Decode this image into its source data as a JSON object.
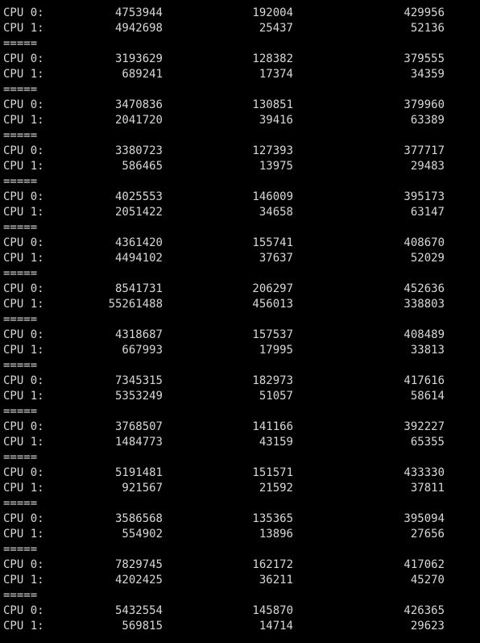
{
  "terminal": {
    "separator": "=====",
    "blocks": [
      {
        "cpu0": {
          "label": "CPU 0:",
          "a": "4753944",
          "b": "192004",
          "c": "429956"
        },
        "cpu1": {
          "label": "CPU 1:",
          "a": "4942698",
          "b": "25437",
          "c": "52136"
        }
      },
      {
        "cpu0": {
          "label": "CPU 0:",
          "a": "3193629",
          "b": "128382",
          "c": "379555"
        },
        "cpu1": {
          "label": "CPU 1:",
          "a": "689241",
          "b": "17374",
          "c": "34359"
        }
      },
      {
        "cpu0": {
          "label": "CPU 0:",
          "a": "3470836",
          "b": "130851",
          "c": "379960"
        },
        "cpu1": {
          "label": "CPU 1:",
          "a": "2041720",
          "b": "39416",
          "c": "63389"
        }
      },
      {
        "cpu0": {
          "label": "CPU 0:",
          "a": "3380723",
          "b": "127393",
          "c": "377717"
        },
        "cpu1": {
          "label": "CPU 1:",
          "a": "586465",
          "b": "13975",
          "c": "29483"
        }
      },
      {
        "cpu0": {
          "label": "CPU 0:",
          "a": "4025553",
          "b": "146009",
          "c": "395173"
        },
        "cpu1": {
          "label": "CPU 1:",
          "a": "2051422",
          "b": "34658",
          "c": "63147"
        }
      },
      {
        "cpu0": {
          "label": "CPU 0:",
          "a": "4361420",
          "b": "155741",
          "c": "408670"
        },
        "cpu1": {
          "label": "CPU 1:",
          "a": "4494102",
          "b": "37637",
          "c": "52029"
        }
      },
      {
        "cpu0": {
          "label": "CPU 0:",
          "a": "8541731",
          "b": "206297",
          "c": "452636"
        },
        "cpu1": {
          "label": "CPU 1:",
          "a": "55261488",
          "b": "456013",
          "c": "338803"
        }
      },
      {
        "cpu0": {
          "label": "CPU 0:",
          "a": "4318687",
          "b": "157537",
          "c": "408489"
        },
        "cpu1": {
          "label": "CPU 1:",
          "a": "667993",
          "b": "17995",
          "c": "33813"
        }
      },
      {
        "cpu0": {
          "label": "CPU 0:",
          "a": "7345315",
          "b": "182973",
          "c": "417616"
        },
        "cpu1": {
          "label": "CPU 1:",
          "a": "5353249",
          "b": "51057",
          "c": "58614"
        }
      },
      {
        "cpu0": {
          "label": "CPU 0:",
          "a": "3768507",
          "b": "141166",
          "c": "392227"
        },
        "cpu1": {
          "label": "CPU 1:",
          "a": "1484773",
          "b": "43159",
          "c": "65355"
        }
      },
      {
        "cpu0": {
          "label": "CPU 0:",
          "a": "5191481",
          "b": "151571",
          "c": "433330"
        },
        "cpu1": {
          "label": "CPU 1:",
          "a": "921567",
          "b": "21592",
          "c": "37811"
        }
      },
      {
        "cpu0": {
          "label": "CPU 0:",
          "a": "3586568",
          "b": "135365",
          "c": "395094"
        },
        "cpu1": {
          "label": "CPU 1:",
          "a": "554902",
          "b": "13896",
          "c": "27656"
        }
      },
      {
        "cpu0": {
          "label": "CPU 0:",
          "a": "7829745",
          "b": "162172",
          "c": "417062"
        },
        "cpu1": {
          "label": "CPU 1:",
          "a": "4202425",
          "b": "36211",
          "c": "45270"
        }
      },
      {
        "cpu0": {
          "label": "CPU 0:",
          "a": "5432554",
          "b": "145870",
          "c": "426365"
        },
        "cpu1": {
          "label": "CPU 1:",
          "a": "569815",
          "b": "14714",
          "c": "29623"
        }
      }
    ]
  }
}
